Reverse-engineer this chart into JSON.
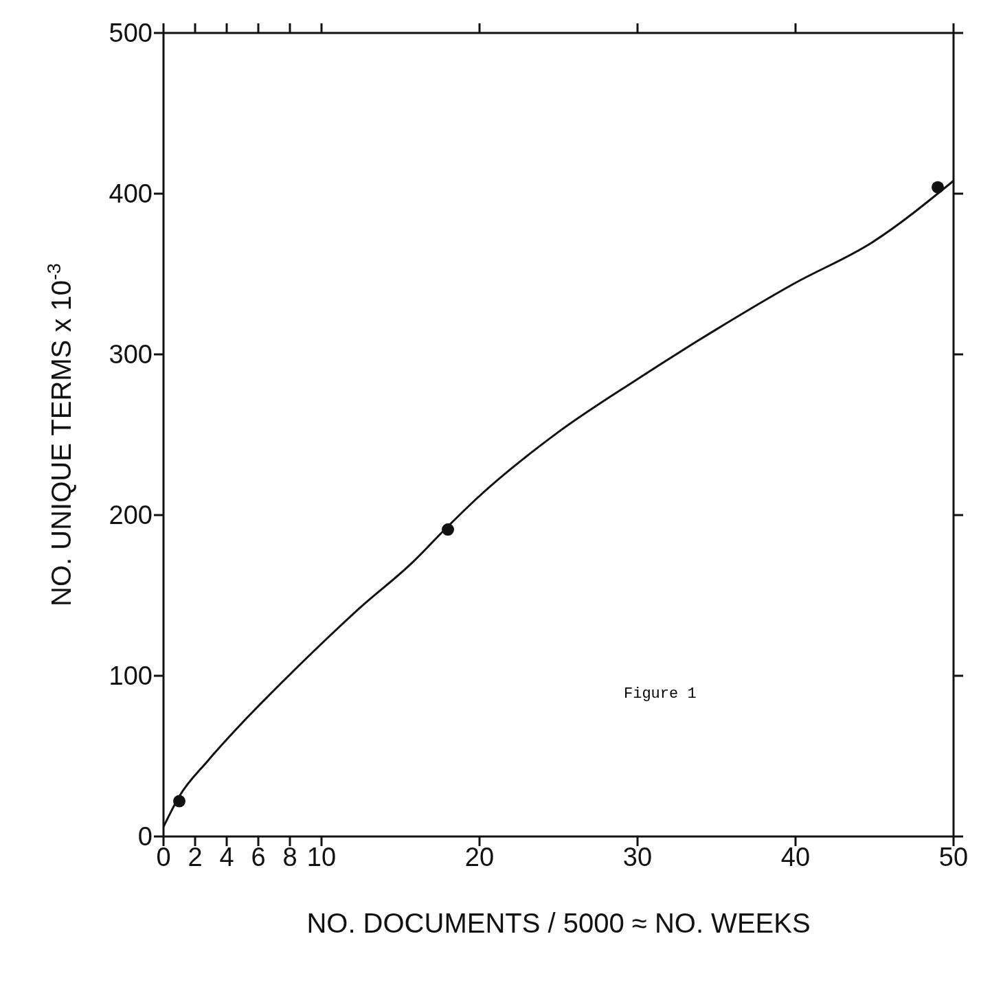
{
  "chart_data": {
    "type": "line",
    "xlabel": "NO. DOCUMENTS / 5000 ≈ NO. WEEKS",
    "ylabel": "NO. UNIQUE TERMS x 10$^{-3}$",
    "annotations": [
      "Figure 1"
    ],
    "xlim": [
      0,
      50
    ],
    "xticks": [
      0,
      2,
      4,
      6,
      8,
      10,
      20,
      30,
      40,
      50
    ],
    "ylim": [
      0,
      500
    ],
    "yticks": [
      0,
      100,
      200,
      300,
      400,
      500
    ],
    "series": [
      {
        "color": "#111111",
        "marker": "none",
        "line_style": "solid",
        "x": [
          0,
          1,
          2.8,
          5.3,
          7.4,
          9.9,
          12.4,
          15.7,
          17.9,
          19.9,
          24.9,
          29.9,
          34.9,
          39.9,
          44.9,
          50
        ],
        "values": [
          6,
          25,
          47,
          74,
          95,
          119,
          142,
          170,
          192,
          211,
          251,
          284,
          315,
          344,
          370,
          408
        ]
      },
      {
        "type": "scatter",
        "color": "#111111",
        "marker": "circle",
        "x": [
          1,
          18,
          49
        ],
        "values": [
          22,
          191,
          404
        ]
      }
    ]
  }
}
